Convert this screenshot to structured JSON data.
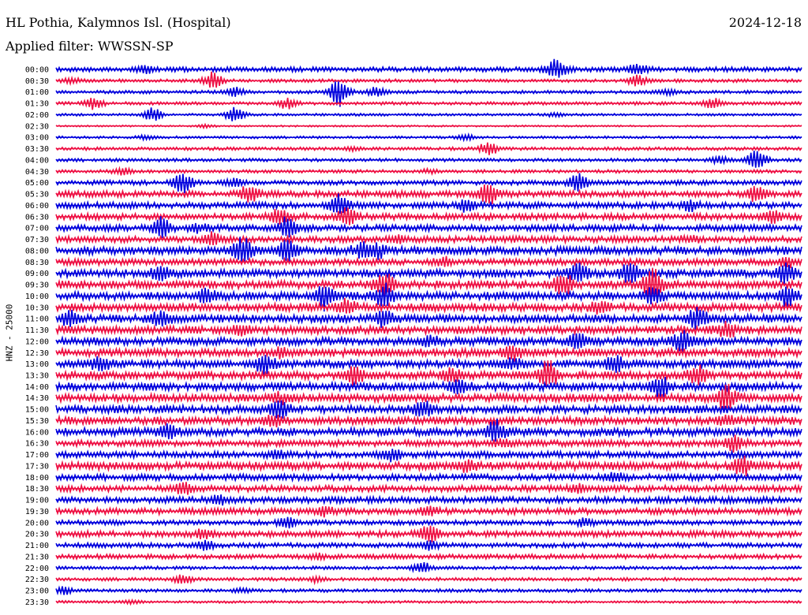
{
  "header": {
    "station": "HL Pothia, Kalymnos Isl. (Hospital)",
    "date": "2024-12-18",
    "filter": "Applied filter: WWSSN-SP",
    "channel_label": "HNZ - 25000"
  },
  "chart_data": {
    "type": "line",
    "subtype": "helicorder",
    "colors": [
      "#0000dd",
      "#ee1144"
    ],
    "grid": false,
    "traces": [
      {
        "label": "00:00",
        "color": "#0000dd",
        "amp": 3,
        "events": [
          [
            0.67,
            13
          ],
          [
            0.78,
            6
          ],
          [
            0.12,
            4
          ]
        ]
      },
      {
        "label": "00:30",
        "color": "#ee1144",
        "amp": 2,
        "events": [
          [
            0.21,
            10
          ],
          [
            0.78,
            7
          ],
          [
            0.02,
            3
          ]
        ]
      },
      {
        "label": "01:00",
        "color": "#0000dd",
        "amp": 2,
        "events": [
          [
            0.38,
            18
          ],
          [
            0.24,
            6
          ],
          [
            0.43,
            6
          ],
          [
            0.82,
            3
          ]
        ]
      },
      {
        "label": "01:30",
        "color": "#ee1144",
        "amp": 2,
        "events": [
          [
            0.05,
            7
          ],
          [
            0.31,
            6
          ],
          [
            0.88,
            6
          ]
        ]
      },
      {
        "label": "02:00",
        "color": "#0000dd",
        "amp": 1.5,
        "events": [
          [
            0.13,
            8
          ],
          [
            0.24,
            9
          ],
          [
            0.67,
            2
          ]
        ]
      },
      {
        "label": "02:30",
        "color": "#ee1144",
        "amp": 1,
        "events": [
          [
            0.2,
            2
          ]
        ]
      },
      {
        "label": "03:00",
        "color": "#0000dd",
        "amp": 1.5,
        "events": [
          [
            0.55,
            3
          ],
          [
            0.12,
            2
          ]
        ]
      },
      {
        "label": "03:30",
        "color": "#ee1144",
        "amp": 2,
        "events": [
          [
            0.58,
            8
          ],
          [
            0.4,
            2
          ]
        ]
      },
      {
        "label": "04:00",
        "color": "#0000dd",
        "amp": 2,
        "events": [
          [
            0.94,
            14
          ],
          [
            0.89,
            4
          ]
        ]
      },
      {
        "label": "04:30",
        "color": "#ee1144",
        "amp": 2,
        "events": [
          [
            0.09,
            4
          ],
          [
            0.5,
            2
          ]
        ]
      },
      {
        "label": "05:00",
        "color": "#0000dd",
        "amp": 3,
        "events": [
          [
            0.17,
            13
          ],
          [
            0.7,
            11
          ],
          [
            0.24,
            4
          ]
        ]
      },
      {
        "label": "05:30",
        "color": "#ee1144",
        "amp": 4,
        "events": [
          [
            0.26,
            11
          ],
          [
            0.58,
            13
          ],
          [
            0.94,
            9
          ]
        ]
      },
      {
        "label": "06:00",
        "color": "#0000dd",
        "amp": 4,
        "events": [
          [
            0.38,
            12
          ],
          [
            0.55,
            6
          ],
          [
            0.85,
            6
          ]
        ]
      },
      {
        "label": "06:30",
        "color": "#ee1144",
        "amp": 4,
        "events": [
          [
            0.39,
            10
          ],
          [
            0.3,
            9
          ],
          [
            0.96,
            7
          ]
        ]
      },
      {
        "label": "07:00",
        "color": "#0000dd",
        "amp": 4,
        "events": [
          [
            0.14,
            13
          ],
          [
            0.31,
            13
          ],
          [
            0.19,
            4
          ]
        ]
      },
      {
        "label": "07:30",
        "color": "#ee1144",
        "amp": 4,
        "events": [
          [
            0.21,
            7
          ],
          [
            0.46,
            4
          ],
          [
            0.85,
            4
          ]
        ]
      },
      {
        "label": "08:00",
        "color": "#0000dd",
        "amp": 5,
        "events": [
          [
            0.25,
            14
          ],
          [
            0.31,
            12
          ],
          [
            0.41,
            8
          ],
          [
            0.43,
            8
          ]
        ]
      },
      {
        "label": "08:30",
        "color": "#ee1144",
        "amp": 4,
        "events": [
          [
            0.52,
            5
          ],
          [
            0.98,
            5
          ]
        ]
      },
      {
        "label": "09:00",
        "color": "#0000dd",
        "amp": 5,
        "events": [
          [
            0.14,
            8
          ],
          [
            0.7,
            12
          ],
          [
            0.77,
            12
          ],
          [
            0.98,
            12
          ]
        ]
      },
      {
        "label": "09:30",
        "color": "#ee1144",
        "amp": 5,
        "events": [
          [
            0.44,
            14
          ],
          [
            0.68,
            14
          ],
          [
            0.8,
            20
          ]
        ]
      },
      {
        "label": "10:00",
        "color": "#0000dd",
        "amp": 5,
        "events": [
          [
            0.36,
            15
          ],
          [
            0.44,
            15
          ],
          [
            0.2,
            7
          ],
          [
            0.8,
            9
          ],
          [
            0.98,
            13
          ]
        ]
      },
      {
        "label": "10:30",
        "color": "#ee1144",
        "amp": 5,
        "events": [
          [
            0.39,
            8
          ],
          [
            0.73,
            6
          ]
        ]
      },
      {
        "label": "11:00",
        "color": "#0000dd",
        "amp": 5,
        "events": [
          [
            0.02,
            8
          ],
          [
            0.14,
            9
          ],
          [
            0.86,
            13
          ],
          [
            0.44,
            9
          ]
        ]
      },
      {
        "label": "11:30",
        "color": "#ee1144",
        "amp": 5,
        "events": [
          [
            0.9,
            9
          ],
          [
            0.25,
            5
          ]
        ]
      },
      {
        "label": "12:00",
        "color": "#0000dd",
        "amp": 5,
        "events": [
          [
            0.7,
            10
          ],
          [
            0.84,
            11
          ],
          [
            0.5,
            5
          ]
        ]
      },
      {
        "label": "12:30",
        "color": "#ee1144",
        "amp": 5,
        "events": [
          [
            0.61,
            8
          ],
          [
            0.3,
            4
          ]
        ]
      },
      {
        "label": "13:00",
        "color": "#0000dd",
        "amp": 5,
        "events": [
          [
            0.28,
            11
          ],
          [
            0.75,
            10
          ],
          [
            0.06,
            7
          ],
          [
            0.61,
            6
          ]
        ]
      },
      {
        "label": "13:30",
        "color": "#ee1144",
        "amp": 5,
        "events": [
          [
            0.4,
            12
          ],
          [
            0.66,
            18
          ],
          [
            0.86,
            12
          ],
          [
            0.53,
            7
          ]
        ]
      },
      {
        "label": "14:00",
        "color": "#0000dd",
        "amp": 5,
        "events": [
          [
            0.81,
            12
          ],
          [
            0.54,
            7
          ]
        ]
      },
      {
        "label": "14:30",
        "color": "#ee1144",
        "amp": 5,
        "events": [
          [
            0.9,
            16
          ],
          [
            0.3,
            5
          ]
        ]
      },
      {
        "label": "15:00",
        "color": "#0000dd",
        "amp": 5,
        "events": [
          [
            0.3,
            10
          ],
          [
            0.49,
            10
          ]
        ]
      },
      {
        "label": "15:30",
        "color": "#ee1144",
        "amp": 5,
        "events": [
          [
            0.29,
            6
          ],
          [
            0.9,
            5
          ]
        ]
      },
      {
        "label": "16:00",
        "color": "#0000dd",
        "amp": 5,
        "events": [
          [
            0.59,
            13
          ],
          [
            0.15,
            8
          ]
        ]
      },
      {
        "label": "16:30",
        "color": "#ee1144",
        "amp": 4,
        "events": [
          [
            0.91,
            10
          ],
          [
            0.6,
            4
          ]
        ]
      },
      {
        "label": "17:00",
        "color": "#0000dd",
        "amp": 4,
        "events": [
          [
            0.45,
            7
          ],
          [
            0.3,
            5
          ]
        ]
      },
      {
        "label": "17:30",
        "color": "#ee1144",
        "amp": 5,
        "events": [
          [
            0.92,
            12
          ],
          [
            0.55,
            5
          ]
        ]
      },
      {
        "label": "18:00",
        "color": "#0000dd",
        "amp": 4,
        "events": [
          [
            0.75,
            5
          ]
        ]
      },
      {
        "label": "18:30",
        "color": "#ee1144",
        "amp": 4,
        "events": [
          [
            0.17,
            7
          ],
          [
            0.7,
            4
          ]
        ]
      },
      {
        "label": "19:00",
        "color": "#0000dd",
        "amp": 4,
        "events": [
          [
            0.22,
            4
          ]
        ]
      },
      {
        "label": "19:30",
        "color": "#ee1144",
        "amp": 4,
        "events": [
          [
            0.36,
            5
          ],
          [
            0.5,
            4
          ]
        ]
      },
      {
        "label": "20:00",
        "color": "#0000dd",
        "amp": 3,
        "events": [
          [
            0.31,
            6
          ],
          [
            0.71,
            4
          ]
        ]
      },
      {
        "label": "20:30",
        "color": "#ee1144",
        "amp": 4,
        "events": [
          [
            0.5,
            11
          ],
          [
            0.2,
            5
          ]
        ]
      },
      {
        "label": "21:00",
        "color": "#0000dd",
        "amp": 3,
        "events": [
          [
            0.2,
            5
          ],
          [
            0.5,
            5
          ]
        ]
      },
      {
        "label": "21:30",
        "color": "#ee1144",
        "amp": 3,
        "events": [
          [
            0.35,
            3
          ]
        ]
      },
      {
        "label": "22:00",
        "color": "#0000dd",
        "amp": 2,
        "events": [
          [
            0.49,
            7
          ]
        ]
      },
      {
        "label": "22:30",
        "color": "#ee1144",
        "amp": 2,
        "events": [
          [
            0.17,
            6
          ],
          [
            0.35,
            3
          ]
        ]
      },
      {
        "label": "23:00",
        "color": "#0000dd",
        "amp": 2,
        "events": [
          [
            0.01,
            4
          ],
          [
            0.25,
            2
          ]
        ]
      },
      {
        "label": "23:30",
        "color": "#ee1144",
        "amp": 1.5,
        "events": [
          [
            0.1,
            2
          ]
        ]
      }
    ]
  }
}
